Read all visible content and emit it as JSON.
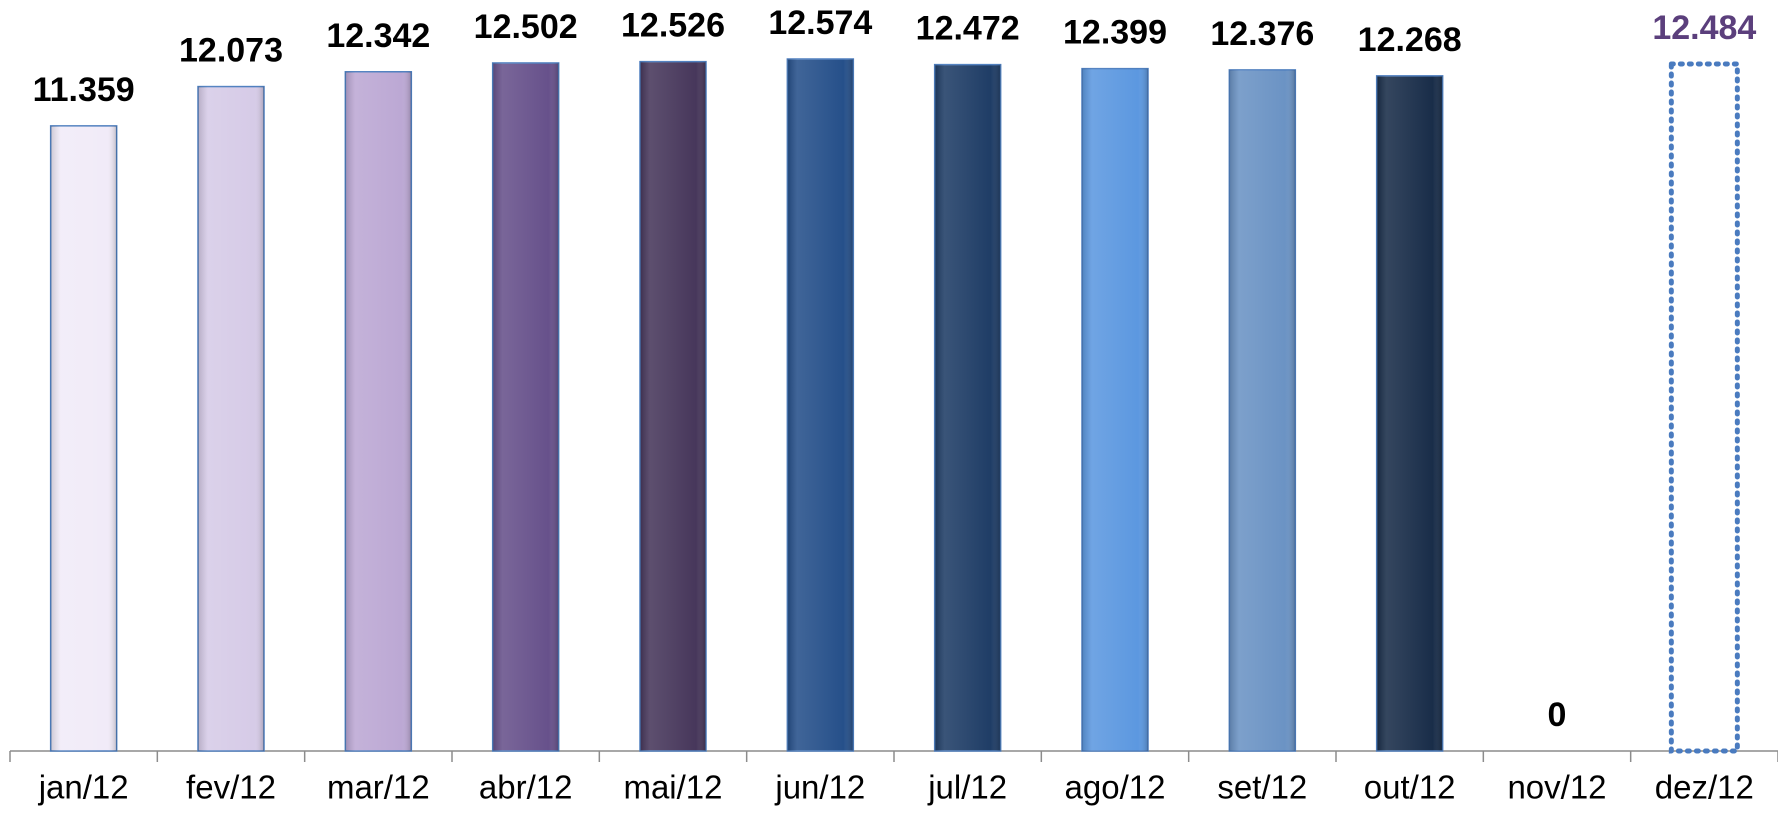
{
  "chart_data": {
    "type": "bar",
    "categories": [
      "jan/12",
      "fev/12",
      "mar/12",
      "abr/12",
      "mai/12",
      "jun/12",
      "jul/12",
      "ago/12",
      "set/12",
      "out/12",
      "nov/12",
      "dez/12"
    ],
    "values": [
      11359,
      12073,
      12342,
      12502,
      12526,
      12574,
      12472,
      12399,
      12376,
      12268,
      0,
      12484
    ],
    "value_labels": [
      "11.359",
      "12.073",
      "12.342",
      "12.502",
      "12.526",
      "12.574",
      "12.472",
      "12.399",
      "12.376",
      "12.268",
      "0",
      "12.484"
    ],
    "colors": [
      "#f1ebf8",
      "#d6cbe7",
      "#bca8d4",
      "#67518b",
      "#47375b",
      "#26508a",
      "#1f3d66",
      "#5c98e0",
      "#6b93c4",
      "#192d49",
      "#cccccc",
      "#4a7bbf"
    ],
    "value_label_colors": [
      "#000000",
      "#000000",
      "#000000",
      "#000000",
      "#000000",
      "#000000",
      "#000000",
      "#000000",
      "#000000",
      "#000000",
      "#000000",
      "#5b3f7c"
    ],
    "bar_styles": [
      "solid",
      "solid",
      "solid",
      "solid",
      "solid",
      "solid",
      "solid",
      "solid",
      "solid",
      "solid",
      "solid",
      "dotted"
    ]
  }
}
